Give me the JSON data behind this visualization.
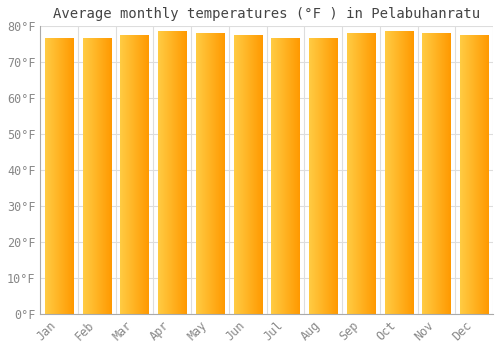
{
  "title": "Average monthly temperatures (°F ) in Pelabuhanratu",
  "months": [
    "Jan",
    "Feb",
    "Mar",
    "Apr",
    "May",
    "Jun",
    "Jul",
    "Aug",
    "Sep",
    "Oct",
    "Nov",
    "Dec"
  ],
  "values": [
    76.5,
    76.5,
    77.5,
    78.5,
    78.0,
    77.5,
    76.5,
    76.5,
    78.0,
    78.5,
    78.0,
    77.5
  ],
  "bar_color_left": "#FFCC44",
  "bar_color_right": "#FF9900",
  "background_color": "#FFFFFF",
  "grid_color": "#DDDDDD",
  "ylim": [
    0,
    80
  ],
  "yticks": [
    0,
    10,
    20,
    30,
    40,
    50,
    60,
    70,
    80
  ],
  "ytick_labels": [
    "0°F",
    "10°F",
    "20°F",
    "30°F",
    "40°F",
    "50°F",
    "60°F",
    "70°F",
    "80°F"
  ],
  "title_fontsize": 10,
  "tick_fontsize": 8.5,
  "font_family": "monospace"
}
